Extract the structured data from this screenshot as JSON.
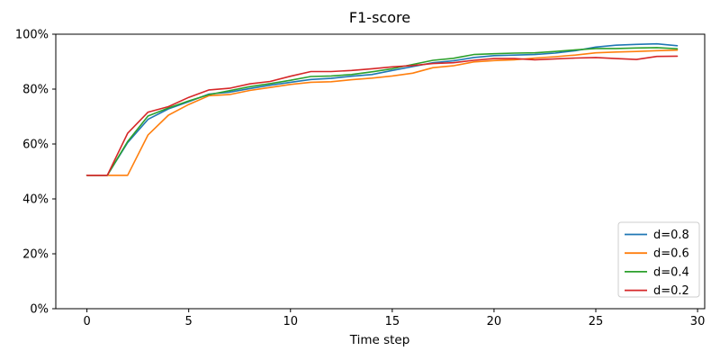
{
  "chart_data": {
    "type": "line",
    "title": "F1-score",
    "xlabel": "Time step",
    "ylabel": "",
    "grid": false,
    "legend_position": "lower right",
    "xlim": [
      -1.53,
      30.35
    ],
    "ylim": [
      0,
      100
    ],
    "xticks": {
      "values": [
        0,
        5,
        10,
        15,
        20,
        25,
        30
      ],
      "labels": [
        "0",
        "5",
        "10",
        "15",
        "20",
        "25",
        "30"
      ]
    },
    "yticks": {
      "values": [
        0,
        20,
        40,
        60,
        80,
        100
      ],
      "labels": [
        "0%",
        "20%",
        "40%",
        "60%",
        "80%",
        "100%"
      ]
    },
    "x": [
      0,
      1,
      2,
      3,
      4,
      5,
      6,
      7,
      8,
      9,
      10,
      11,
      12,
      13,
      14,
      15,
      16,
      17,
      18,
      19,
      20,
      21,
      22,
      23,
      24,
      25,
      26,
      27,
      28,
      29
    ],
    "series": [
      {
        "name": "d=0.8",
        "color": "#1f77b4",
        "values": [
          48.6,
          48.6,
          60.5,
          69.0,
          72.8,
          75.4,
          78.2,
          78.9,
          80.2,
          81.4,
          82.5,
          83.5,
          83.9,
          84.7,
          85.3,
          86.8,
          88.2,
          89.6,
          90.3,
          91.5,
          92.2,
          92.4,
          92.6,
          93.1,
          94.0,
          95.3,
          96.0,
          96.3,
          96.5,
          95.8
        ]
      },
      {
        "name": "d=0.6",
        "color": "#ff7f0e",
        "values": [
          48.6,
          48.6,
          48.6,
          63.3,
          70.5,
          74.4,
          77.6,
          78.0,
          79.5,
          80.6,
          81.7,
          82.5,
          82.7,
          83.4,
          84.0,
          84.8,
          85.8,
          87.8,
          88.5,
          89.9,
          90.4,
          90.7,
          91.3,
          91.8,
          92.4,
          93.2,
          93.5,
          93.7,
          94.0,
          94.2
        ]
      },
      {
        "name": "d=0.4",
        "color": "#2ca02c",
        "values": [
          48.6,
          48.6,
          60.9,
          70.2,
          73.1,
          75.7,
          78.0,
          79.4,
          80.9,
          82.0,
          83.2,
          84.6,
          84.8,
          85.3,
          86.3,
          87.4,
          89.0,
          90.5,
          91.2,
          92.6,
          92.9,
          93.1,
          93.2,
          93.7,
          94.3,
          94.8,
          94.8,
          95.0,
          95.1,
          94.7
        ]
      },
      {
        "name": "d=0.2",
        "color": "#d62728",
        "values": [
          48.6,
          48.6,
          63.9,
          71.6,
          73.6,
          77.0,
          79.7,
          80.3,
          81.9,
          82.8,
          84.7,
          86.4,
          86.4,
          86.8,
          87.4,
          88.1,
          88.6,
          89.3,
          89.6,
          90.5,
          91.1,
          91.1,
          90.7,
          91.0,
          91.3,
          91.5,
          91.1,
          90.8,
          91.9,
          92.0
        ]
      }
    ],
    "legend": {
      "edge_color": "#cccccc",
      "background": "#ffffff"
    },
    "axes": {
      "spine_color": "#000000",
      "background": "#ffffff"
    }
  }
}
